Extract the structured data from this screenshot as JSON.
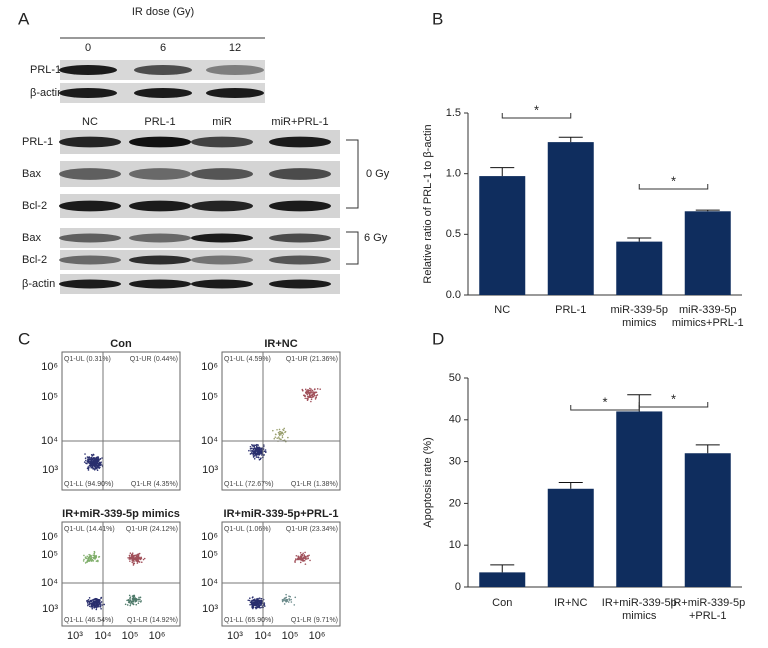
{
  "panel_labels": [
    "A",
    "B",
    "C",
    "D"
  ],
  "blots": {
    "dose_title": "IR dose (Gy)",
    "doses": [
      "0",
      "6",
      "12"
    ],
    "dose_rows": [
      "PRL-1",
      "β-actin"
    ],
    "groups": [
      "NC",
      "PRL-1",
      "miR",
      "miR+PRL-1"
    ],
    "group_rows": [
      "PRL-1",
      "Bax",
      "Bcl-2",
      "Bax",
      "Bcl-2",
      "β-actin"
    ],
    "brackets": [
      "0 Gy",
      "6 Gy"
    ]
  },
  "flow": {
    "ticks": [
      "10³",
      "10⁴",
      "10⁵",
      "10⁶"
    ],
    "plots": [
      {
        "title": "Con",
        "quadrants": [
          "Q1-UL (0.31%)",
          "Q1-UR (0.44%)",
          "Q1-LL (94.90%)",
          "Q1-LR (4.35%)"
        ]
      },
      {
        "title": "IR+NC",
        "quadrants": [
          "Q1-UL (4.59%)",
          "Q1-UR (21.36%)",
          "Q1-LL (72.67%)",
          "Q1-LR (1.38%)"
        ]
      },
      {
        "title": "IR+miR-339-5p mimics",
        "quadrants": [
          "Q1-UL (14.41%)",
          "Q1-UR (24.12%)",
          "Q1-LL (46.54%)",
          "Q1-LR (14.92%)"
        ]
      },
      {
        "title": "IR+miR-339-5p+PRL-1",
        "quadrants": [
          "Q1-UL (1.06%)",
          "Q1-UR (23.34%)",
          "Q1-LL (65.90%)",
          "Q1-LR (9.71%)"
        ]
      }
    ]
  },
  "chart_data": [
    {
      "type": "bar",
      "ylabel": "Relative ratio of PRL-1 to β-actin",
      "categories": [
        "NC",
        "PRL-1",
        "miR-339-5p mimics",
        "miR-339-5p mimics+PRL-1"
      ],
      "values": [
        0.98,
        1.26,
        0.44,
        0.69
      ],
      "errors": [
        0.07,
        0.04,
        0.03,
        0.01
      ],
      "color": "#0f2d5e",
      "ylim": [
        0,
        1.5
      ],
      "yticks": [
        {
          "value": 0,
          "label": "0.0"
        },
        0.5,
        {
          "value": 1,
          "label": "1.0"
        },
        1.5
      ],
      "annotations": [
        "*",
        "*"
      ]
    },
    {
      "type": "bar",
      "ylabel": "Apoptosis rate (%)",
      "categories": [
        "Con",
        "IR+NC",
        "IR+miR-339-5p mimics",
        "IR+miR-339-5p +PRL-1"
      ],
      "values": [
        3.5,
        23.5,
        42,
        32
      ],
      "errors": [
        1.8,
        1.5,
        4,
        2
      ],
      "color": "#0f2d5e",
      "ylim": [
        0,
        50
      ],
      "yticks": [
        0,
        10,
        20,
        30,
        40,
        50
      ],
      "annotations": [
        "*",
        "*"
      ]
    }
  ]
}
